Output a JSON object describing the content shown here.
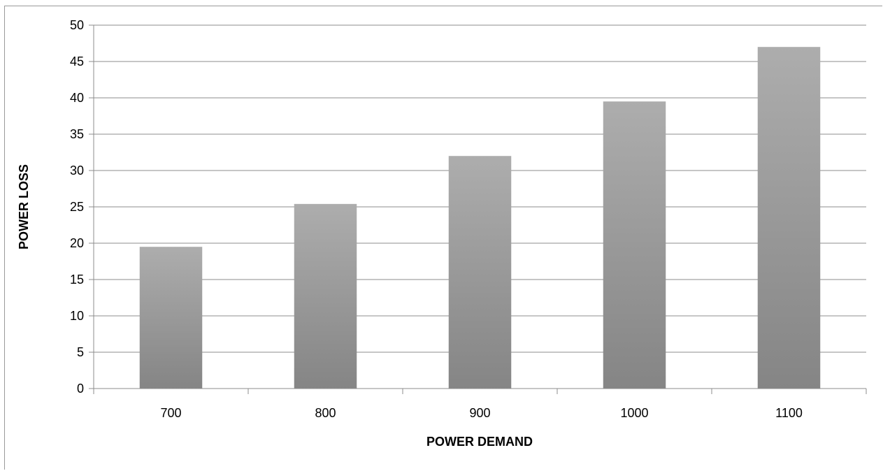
{
  "chart_data": {
    "type": "bar",
    "categories": [
      "700",
      "800",
      "900",
      "1000",
      "1100"
    ],
    "values": [
      19.5,
      25.4,
      32,
      39.5,
      47
    ],
    "title": "",
    "xlabel": "POWER DEMAND",
    "ylabel": "POWER LOSS",
    "ylim": [
      0,
      50
    ],
    "yticks": [
      0,
      5,
      10,
      15,
      20,
      25,
      30,
      35,
      40,
      45,
      50
    ],
    "grid": true,
    "legend": "none",
    "bar_color_top": "#adadad",
    "bar_color_bottom": "#858585",
    "gridline_color": "#8c8c8c"
  }
}
